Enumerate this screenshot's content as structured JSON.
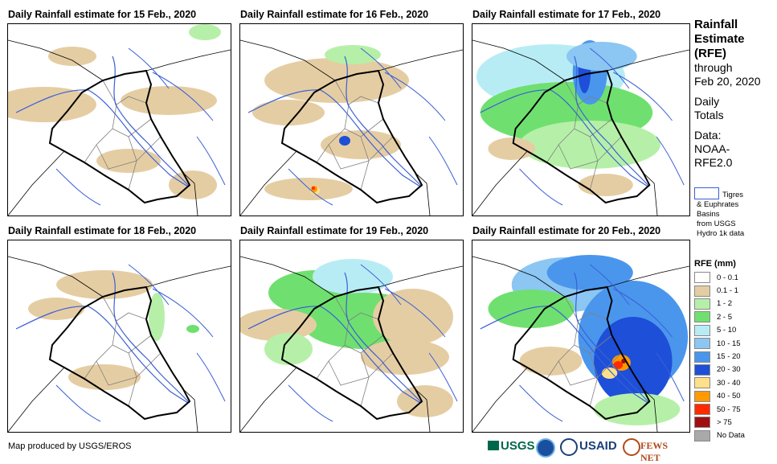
{
  "panels": [
    {
      "title": "Daily Rainfall estimate for 15 Feb., 2020"
    },
    {
      "title": "Daily Rainfall estimate for 16 Feb., 2020"
    },
    {
      "title": "Daily Rainfall estimate for 17 Feb., 2020"
    },
    {
      "title": "Daily Rainfall estimate for 18 Feb., 2020"
    },
    {
      "title": "Daily Rainfall estimate for 19 Feb., 2020"
    },
    {
      "title": "Daily Rainfall estimate for 20 Feb., 2020"
    }
  ],
  "sidebar": {
    "title_lines": [
      "Rainfall",
      "Estimate",
      "(RFE)"
    ],
    "through": "through",
    "date": "Feb 20, 2020",
    "daily_1": "Daily",
    "daily_2": "Totals",
    "data_1": "Data:",
    "data_2": "NOAA-",
    "data_3": "RFE2.0"
  },
  "basin_note": {
    "line1": "Tigres",
    "line2": "& Euphrates",
    "line3": "Basins",
    "line4": "from USGS",
    "line5": "Hydro 1k data"
  },
  "legend": {
    "title": "RFE (mm)",
    "items": [
      {
        "label": "0 - 0.1",
        "color": "#ffffff"
      },
      {
        "label": "0.1 - 1",
        "color": "#e5cda3"
      },
      {
        "label": "1 - 2",
        "color": "#b6f0a8"
      },
      {
        "label": "2 - 5",
        "color": "#6fe06f"
      },
      {
        "label": "5 - 10",
        "color": "#b8ecf5"
      },
      {
        "label": "10 - 15",
        "color": "#8cc6f2"
      },
      {
        "label": "15 - 20",
        "color": "#4a96ec"
      },
      {
        "label": "20 - 30",
        "color": "#1e4fd8"
      },
      {
        "label": "30 - 40",
        "color": "#ffe08a"
      },
      {
        "label": "40 - 50",
        "color": "#ff9a00"
      },
      {
        "label": "50 - 75",
        "color": "#ff2a00"
      },
      {
        "label": "> 75",
        "color": "#a01010"
      },
      {
        "label": "No Data",
        "color": "#a9a9a9"
      }
    ]
  },
  "footer": {
    "credit": "Map produced by USGS/EROS"
  },
  "logos": {
    "usgs": "USGS",
    "usaid": "USAID",
    "fewsnet": "FEWS NET"
  },
  "colors": {
    "boundary": "#000000",
    "rivers": "#3a5fd6",
    "admin": "#808080"
  }
}
